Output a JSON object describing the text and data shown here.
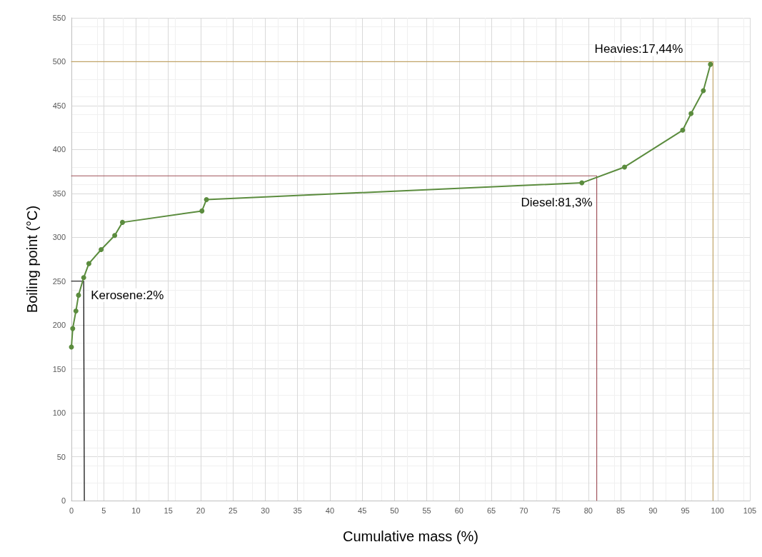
{
  "chart_data": {
    "type": "line",
    "xlabel": "Cumulative mass (%)",
    "ylabel": "Boiling point (°C)",
    "xlim": [
      0,
      105
    ],
    "xticks": [
      0,
      5,
      10,
      15,
      20,
      25,
      30,
      35,
      40,
      45,
      50,
      55,
      60,
      65,
      70,
      75,
      80,
      85,
      90,
      95,
      100,
      105
    ],
    "ylim": [
      0,
      550
    ],
    "yticks": [
      0,
      50,
      100,
      150,
      200,
      250,
      300,
      350,
      400,
      450,
      500,
      550
    ],
    "grid": true,
    "series": [
      {
        "color": "#5b8c3e",
        "marker": "circle",
        "x": [
          0,
          0.2,
          0.7,
          1.1,
          1.9,
          2.7,
          4.6,
          6.7,
          7.9,
          20.2,
          20.9,
          79,
          85.6,
          94.6,
          95.9,
          97.8,
          98.9
        ],
        "values": [
          175,
          196,
          216,
          234,
          254,
          270,
          286,
          302,
          317,
          330,
          343,
          362,
          380,
          422,
          441,
          467,
          497
        ]
      },
      {
        "color": "#000000",
        "marker": "none",
        "x": [
          0,
          1.9,
          2.0
        ],
        "values": [
          250,
          250,
          0
        ]
      },
      {
        "color": "#a0525a",
        "marker": "none",
        "x": [
          0,
          81.3,
          81.3
        ],
        "values": [
          370,
          370,
          0
        ]
      },
      {
        "color": "#c0a468",
        "marker": "none",
        "x": [
          0,
          99.3,
          99.3
        ],
        "values": [
          500,
          500,
          0
        ]
      }
    ],
    "annotations": [
      "Kerosene:2%",
      "Diesel:81,3%",
      "Heavies:17,44%"
    ]
  }
}
